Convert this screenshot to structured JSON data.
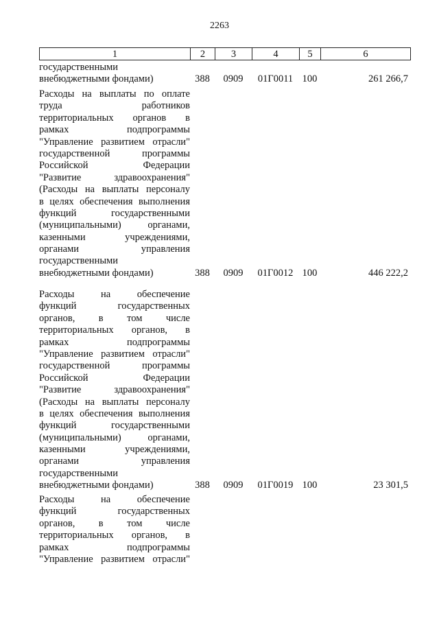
{
  "page_number": "2263",
  "table": {
    "headers": [
      "1",
      "2",
      "3",
      "4",
      "5",
      "6"
    ],
    "rows": [
      {
        "lines": [
          "государственными",
          "внебюджетными фондами)"
        ],
        "col2": "388",
        "col3": "0909",
        "col4": "01Г0011",
        "col5": "100",
        "col6": "261 266,7"
      },
      {
        "lines": [
          "Расходы на выплаты по оплате",
          "труда работников",
          "территориальных органов в",
          "рамках подпрограммы",
          "\"Управление развитием отрасли\"",
          "государственной программы",
          "Российской Федерации",
          "\"Развитие здравоохранения\"",
          "(Расходы на выплаты персоналу",
          "в целях обеспечения выполнения",
          "функций государственными",
          "(муниципальными) органами,",
          "казенными учреждениями,",
          "органами управления",
          "государственными",
          "внебюджетными фондами)"
        ],
        "col2": "388",
        "col3": "0909",
        "col4": "01Г0012",
        "col5": "100",
        "col6": "446 222,2"
      },
      {
        "lines": [
          "Расходы на обеспечение",
          "функций государственных",
          "органов, в том числе",
          "территориальных органов, в",
          "рамках подпрограммы",
          "\"Управление развитием отрасли\"",
          "государственной программы",
          "Российской Федерации",
          "\"Развитие здравоохранения\"",
          "(Расходы на выплаты персоналу",
          "в целях обеспечения выполнения",
          "функций государственными",
          "(муниципальными) органами,",
          "казенными учреждениями,",
          "органами управления",
          "государственными",
          "внебюджетными фондами)"
        ],
        "col2": "388",
        "col3": "0909",
        "col4": "01Г0019",
        "col5": "100",
        "col6": "23 301,5"
      },
      {
        "lines": [
          "Расходы на обеспечение",
          "функций государственных",
          "органов, в том числе",
          "территориальных органов, в",
          "рамках подпрограммы",
          "\"Управление развитием отрасли\""
        ],
        "continues": true
      }
    ]
  }
}
